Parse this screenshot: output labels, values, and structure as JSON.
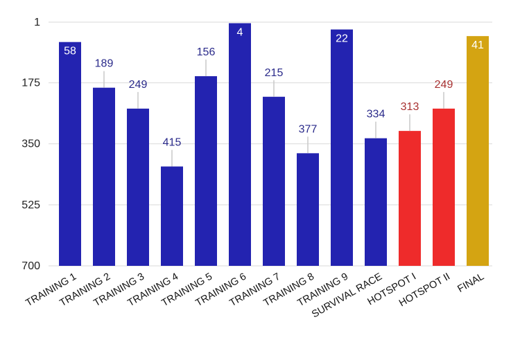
{
  "chart_data": {
    "type": "bar",
    "y_axis_reversed": true,
    "ylim": [
      1,
      700
    ],
    "y_ticks": [
      1,
      175,
      350,
      525,
      700
    ],
    "grid": true,
    "categories": [
      "TRAINING 1",
      "TRAINING 2",
      "TRAINING 3",
      "TRAINING 4",
      "TRAINING 5",
      "TRAINING 6",
      "TRAINING 7",
      "TRAINING 8",
      "TRAINING 9",
      "SURVIVAL RACE",
      "HOTSPOT I",
      "HOTSPOT II",
      "FINAL"
    ],
    "values": [
      58,
      189,
      249,
      415,
      156,
      4,
      215,
      377,
      22,
      334,
      313,
      249,
      41
    ],
    "bar_colors": [
      "#2323b0",
      "#2323b0",
      "#2323b0",
      "#2323b0",
      "#2323b0",
      "#2323b0",
      "#2323b0",
      "#2323b0",
      "#2323b0",
      "#2323b0",
      "#ee2b2b",
      "#ee2b2b",
      "#d4a412"
    ],
    "label_colors": [
      "#ffffff",
      "#2a2a8a",
      "#2a2a8a",
      "#2a2a8a",
      "#2a2a8a",
      "#ffffff",
      "#2a2a8a",
      "#2a2a8a",
      "#ffffff",
      "#2a2a8a",
      "#a83232",
      "#a83232",
      "#ffffff"
    ],
    "label_inside": [
      true,
      false,
      false,
      false,
      false,
      true,
      false,
      false,
      true,
      false,
      false,
      false,
      true
    ]
  }
}
